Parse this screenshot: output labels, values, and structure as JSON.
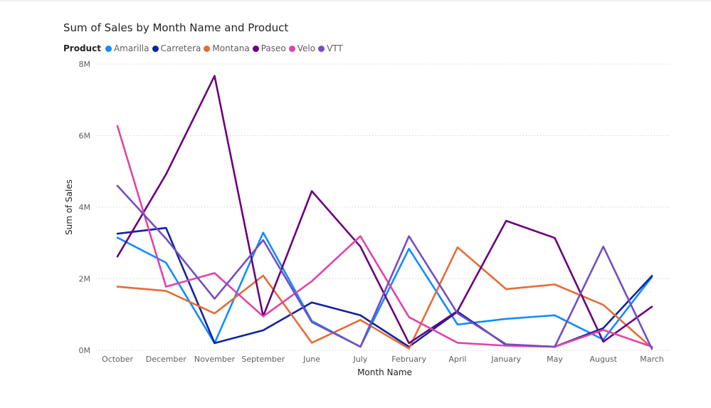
{
  "chart_data": {
    "type": "line",
    "title": "Sum of Sales by Month Name and Product",
    "legend_title": "Product",
    "xlabel": "Month Name",
    "ylabel": "Sum of Sales",
    "ylim": [
      0,
      8000000
    ],
    "y_ticks": [
      {
        "value": 0,
        "label": "0M"
      },
      {
        "value": 2000000,
        "label": "2M"
      },
      {
        "value": 4000000,
        "label": "4M"
      },
      {
        "value": 6000000,
        "label": "6M"
      },
      {
        "value": 8000000,
        "label": "8M"
      }
    ],
    "grid": true,
    "legend_position": "top-left",
    "categories": [
      "October",
      "December",
      "November",
      "September",
      "June",
      "July",
      "February",
      "April",
      "January",
      "May",
      "August",
      "March"
    ],
    "series": [
      {
        "name": "Amarilla",
        "color": "#118DFF",
        "values": [
          3150000,
          2450000,
          200000,
          3290000,
          820000,
          100000,
          2840000,
          720000,
          880000,
          980000,
          300000,
          2050000
        ]
      },
      {
        "name": "Carretera",
        "color": "#12239E",
        "values": [
          3260000,
          3420000,
          200000,
          560000,
          1340000,
          980000,
          100000,
          1080000,
          150000,
          100000,
          620000,
          2080000
        ]
      },
      {
        "name": "Montana",
        "color": "#E66C37",
        "values": [
          1780000,
          1660000,
          1030000,
          2090000,
          210000,
          850000,
          50000,
          2880000,
          1710000,
          1840000,
          1270000,
          70000
        ]
      },
      {
        "name": "Paseo",
        "color": "#6B007B",
        "values": [
          2620000,
          4920000,
          7670000,
          950000,
          4450000,
          2900000,
          200000,
          1100000,
          3620000,
          3140000,
          240000,
          1220000
        ]
      },
      {
        "name": "Velo",
        "color": "#E044A7",
        "values": [
          6270000,
          1780000,
          2160000,
          950000,
          1930000,
          3190000,
          930000,
          210000,
          130000,
          100000,
          570000,
          100000
        ]
      },
      {
        "name": "VTT",
        "color": "#744EC2",
        "values": [
          4600000,
          3120000,
          1440000,
          3080000,
          790000,
          100000,
          3190000,
          1030000,
          170000,
          100000,
          2900000,
          40000
        ]
      }
    ]
  }
}
